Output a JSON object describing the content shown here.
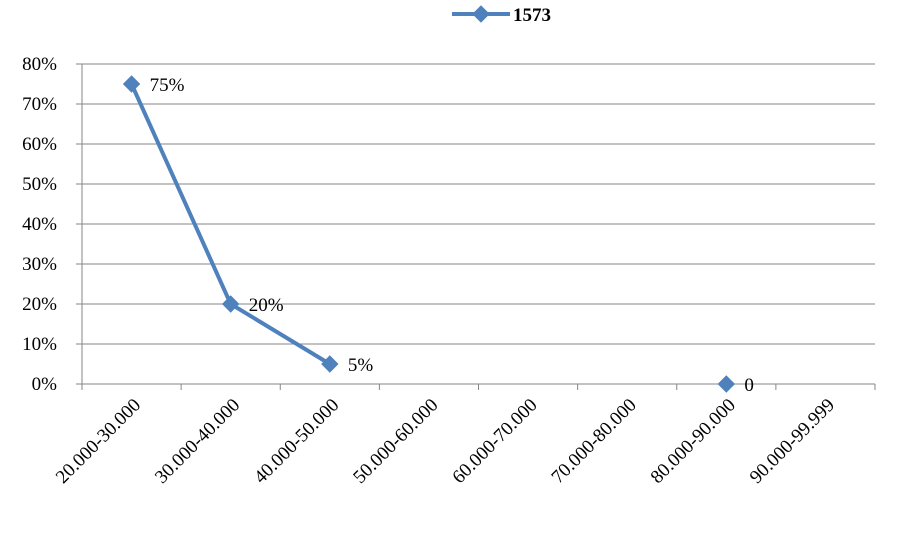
{
  "chart_data": {
    "type": "line",
    "categories": [
      "20.000-30.000",
      "30.000-40.000",
      "40.000-50.000",
      "50.000-60.000",
      "60.000-70.000",
      "70.000-80.000",
      "80.000-90.000",
      "90.000-99.999"
    ],
    "y_tick_labels": [
      "0%",
      "10%",
      "20%",
      "30%",
      "40%",
      "50%",
      "60%",
      "70%",
      "80%"
    ],
    "ylim": [
      0,
      0.8
    ],
    "y_tick_step": 0.1,
    "grid": true,
    "legend_position": "top",
    "series": [
      {
        "name": "1573",
        "color": "#4f81bd",
        "marker": "diamond",
        "segments": [
          [
            {
              "category": "20.000-30.000",
              "value": 0.75,
              "label": "75%"
            },
            {
              "category": "30.000-40.000",
              "value": 0.2,
              "label": "20%"
            },
            {
              "category": "40.000-50.000",
              "value": 0.05,
              "label": "5%"
            }
          ],
          [
            {
              "category": "80.000-90.000",
              "value": 0,
              "label": "0"
            }
          ]
        ]
      }
    ]
  }
}
